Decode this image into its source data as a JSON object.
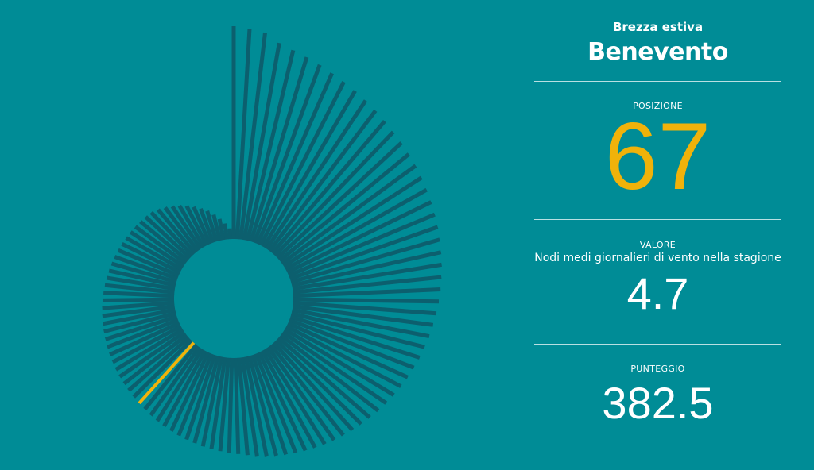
{
  "header": {
    "subtitle": "Brezza estiva",
    "title": "Benevento"
  },
  "stats": {
    "position_label": "POSIZIONE",
    "position": 67,
    "value_label": "VALORE",
    "value_desc": "Nodi medi giornalieri di vento nella stagione",
    "value": 4.7,
    "score_label": "PUNTEGGIO",
    "score": 382.5
  },
  "chart_data": {
    "type": "radial-bar",
    "color": "#0c5f6e",
    "highlight_color": "#f0b20a",
    "rlim": [
      0,
      1000
    ],
    "values": [
      1000,
      990,
      978,
      940,
      920,
      905,
      890,
      875,
      862,
      850,
      838,
      826,
      814,
      803,
      795,
      786,
      778,
      769,
      760,
      752,
      743,
      735,
      726,
      717,
      709,
      700,
      692,
      683,
      674,
      664,
      655,
      645,
      636,
      626,
      617,
      607,
      598,
      588,
      579,
      569,
      560,
      552,
      543,
      535,
      527,
      518,
      510,
      501,
      493,
      485,
      476,
      468,
      459,
      451,
      446,
      440,
      435,
      430,
      424,
      419,
      414,
      408,
      403,
      398,
      393,
      387,
      382.5,
      379,
      376,
      372,
      369,
      366,
      362,
      359,
      356,
      352,
      349,
      346,
      342,
      339,
      336,
      332,
      328,
      324,
      320,
      316,
      312,
      308,
      304,
      300,
      296,
      292,
      288,
      284,
      280,
      268,
      255,
      240,
      225,
      208,
      190,
      170,
      150,
      125,
      100,
      75,
      50
    ]
  }
}
